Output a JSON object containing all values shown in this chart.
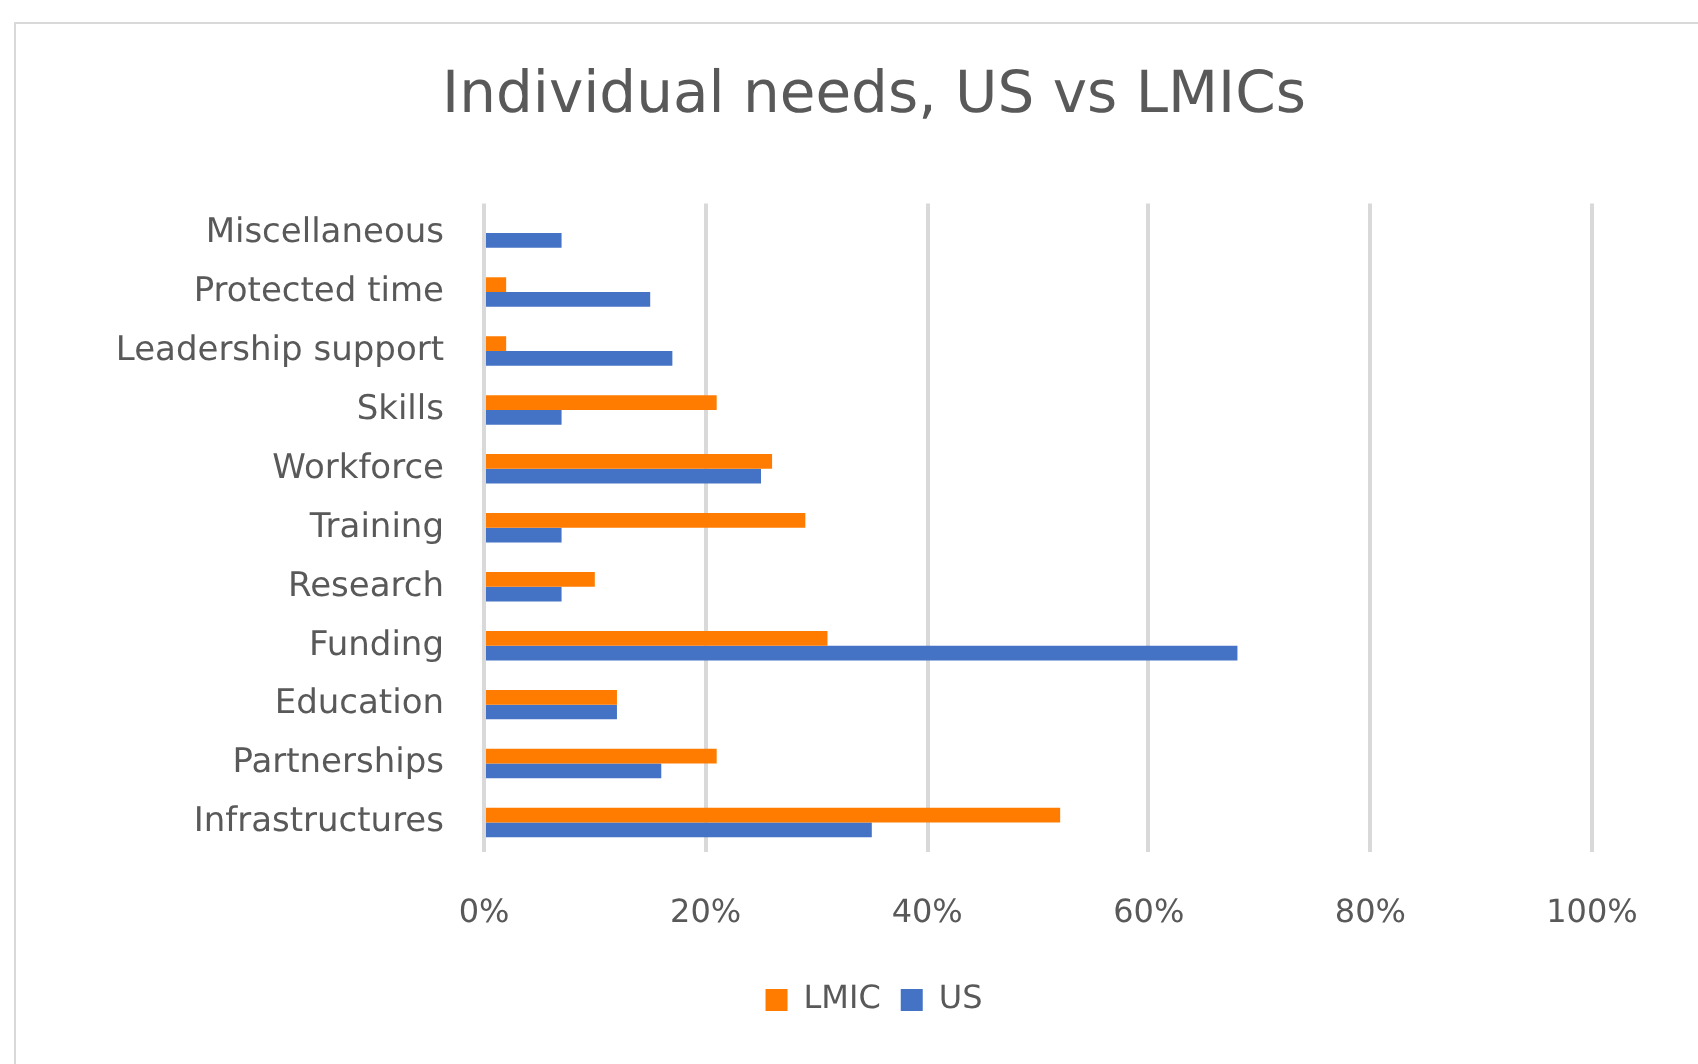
{
  "chart_data": {
    "type": "bar",
    "orientation": "horizontal",
    "title": "Individual needs, US vs LMICs",
    "categories": [
      "Miscellaneous",
      "Protected time",
      "Leadership support",
      "Skills",
      "Workforce",
      "Training",
      "Research",
      "Funding",
      "Education",
      "Partnerships",
      "Infrastructures"
    ],
    "series": [
      {
        "name": "LMIC",
        "color": "#ff7c00",
        "values": [
          0,
          2,
          2,
          21,
          26,
          29,
          10,
          31,
          12,
          21,
          52
        ]
      },
      {
        "name": "US",
        "color": "#4472c4",
        "values": [
          7,
          15,
          17,
          7,
          25,
          7,
          7,
          68,
          12,
          16,
          35
        ]
      }
    ],
    "xlim": [
      0,
      100
    ],
    "xticks": [
      {
        "value": 0,
        "label": "0%"
      },
      {
        "value": 20,
        "label": "20%"
      },
      {
        "value": 40,
        "label": "40%"
      },
      {
        "value": 60,
        "label": "60%"
      },
      {
        "value": 80,
        "label": "80%"
      },
      {
        "value": 100,
        "label": "100%"
      }
    ],
    "grid": "x",
    "legend": "bottom"
  }
}
